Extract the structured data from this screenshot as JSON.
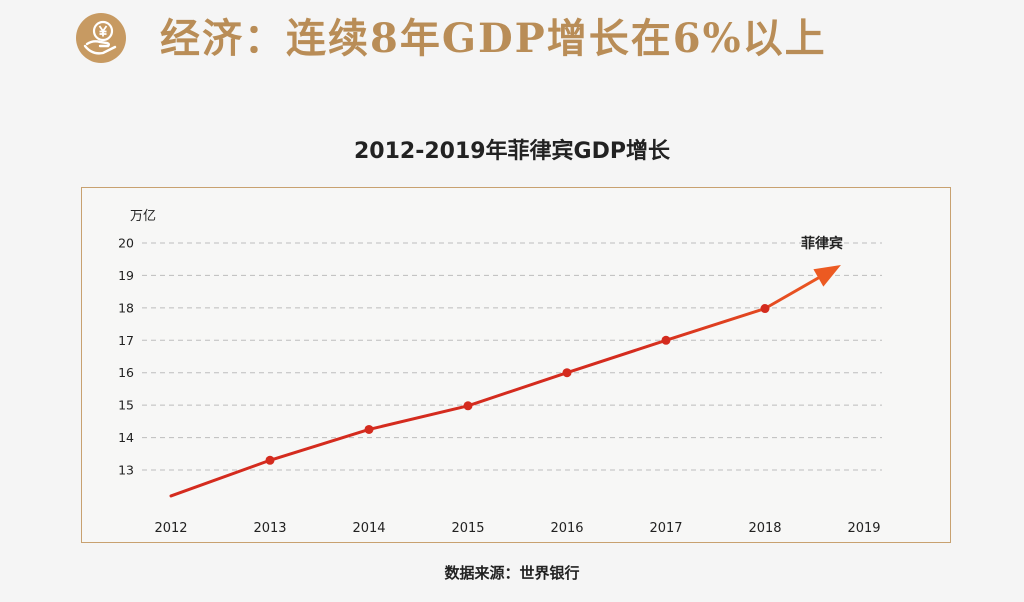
{
  "header": {
    "title": "经济：连续8年GDP增长在6%以上",
    "logo_icon": "yen-hand-icon"
  },
  "chart_data": {
    "type": "line",
    "title": "2012-2019年菲律宾GDP增长",
    "ylabel": "万亿",
    "xlabel": "",
    "categories": [
      "2012",
      "2013",
      "2014",
      "2015",
      "2016",
      "2017",
      "2018",
      "2019"
    ],
    "yticks": [
      13,
      14,
      15,
      16,
      17,
      18,
      19,
      20
    ],
    "ylim": [
      12,
      20.5
    ],
    "grid": true,
    "series": [
      {
        "name": "菲律宾",
        "x": [
          "2012",
          "2013",
          "2014",
          "2015",
          "2016",
          "2017",
          "2018"
        ],
        "values": [
          12.2,
          13.3,
          14.25,
          14.98,
          16.0,
          17.0,
          17.98
        ],
        "arrow_end": 19.2,
        "color": "#d42b1e",
        "arrow_color": "#ec5a22",
        "marker_color": "#d42b1e"
      }
    ],
    "source": "数据来源：世界银行"
  },
  "colors": {
    "accent": "#b98d57",
    "frame": "#c8a170",
    "grid": "#bdbdbd"
  }
}
